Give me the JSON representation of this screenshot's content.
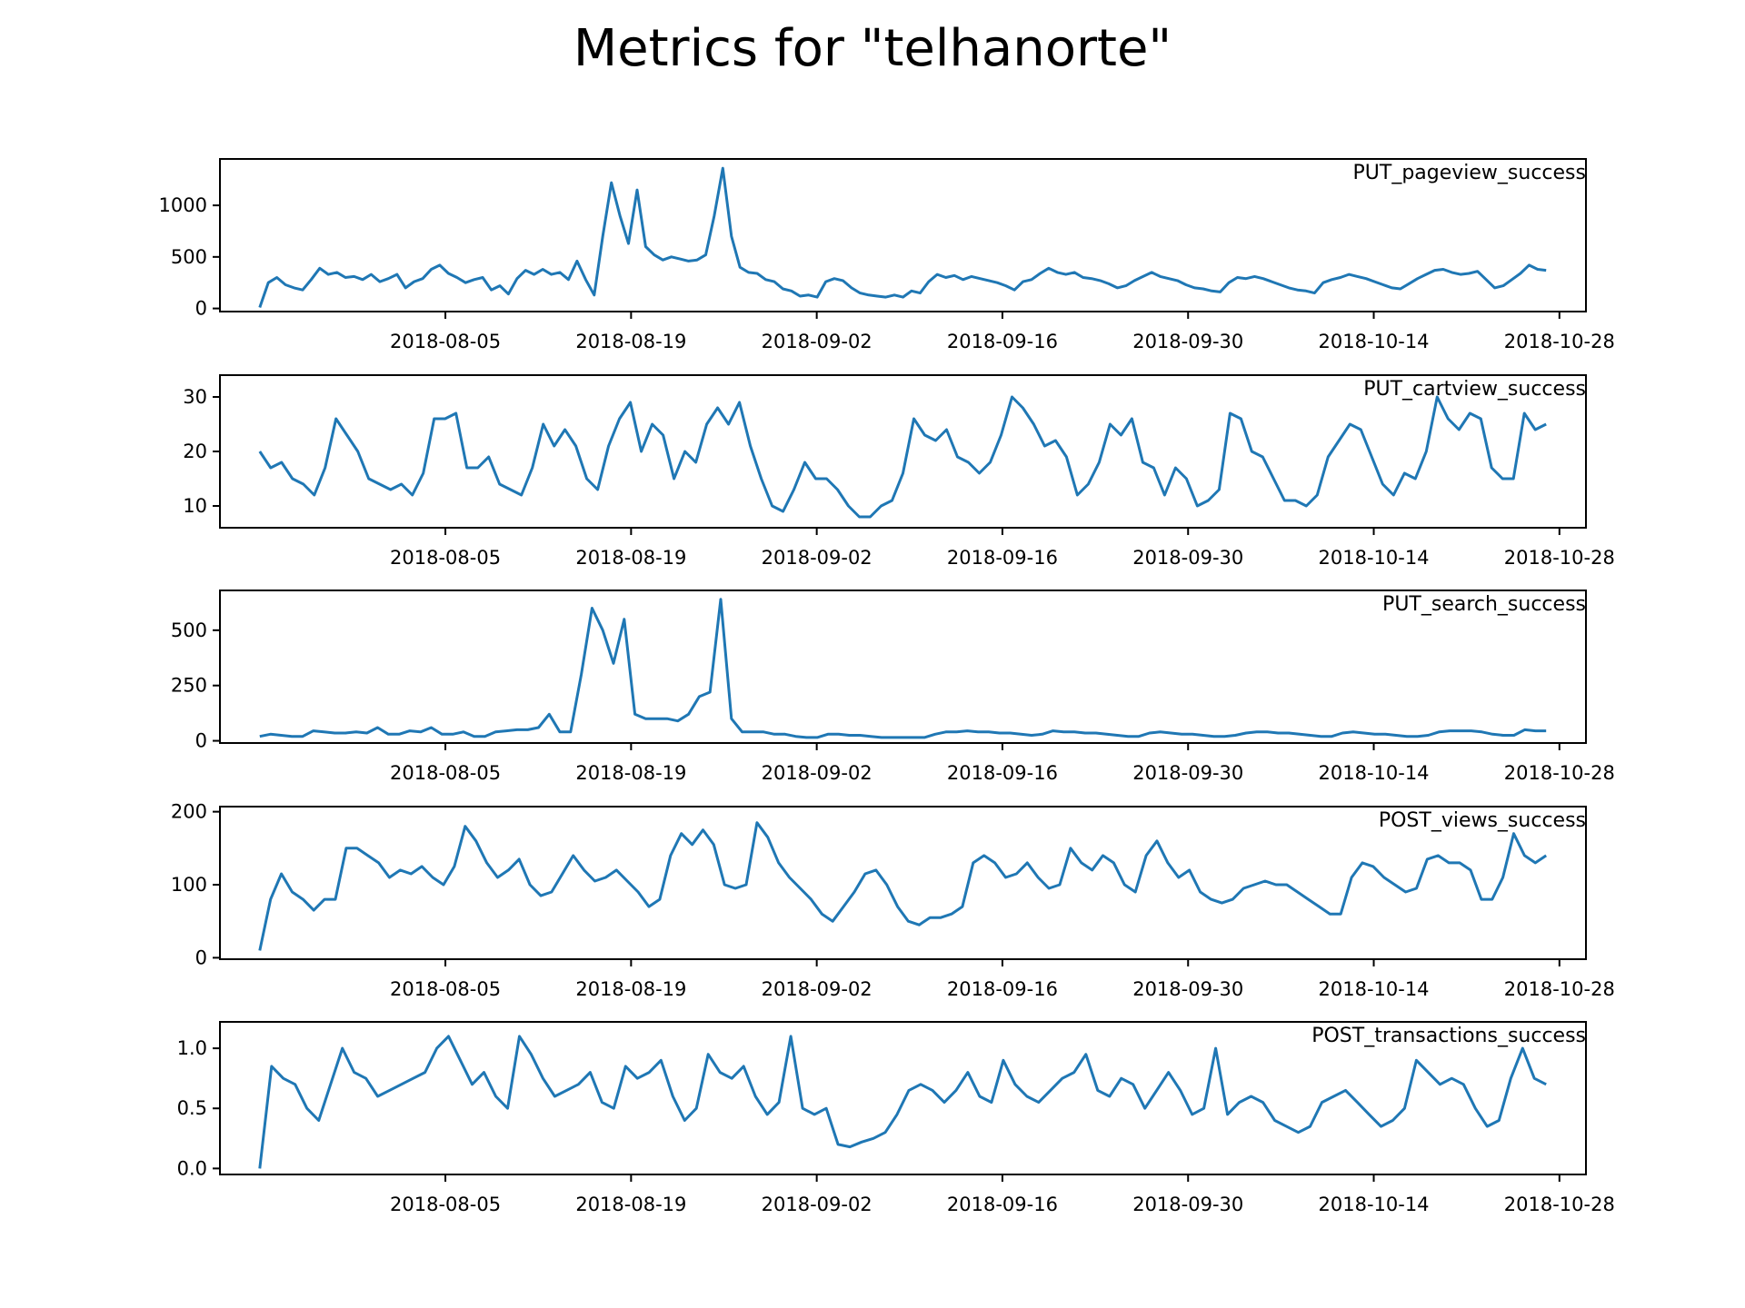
{
  "chart_data": {
    "type": "line",
    "title": "Metrics for \"telhanorte\"",
    "x_tick_labels": [
      "2018-08-05",
      "2018-08-19",
      "2018-09-02",
      "2018-09-16",
      "2018-09-30",
      "2018-10-14",
      "2018-10-28"
    ],
    "x_range": [
      "2018-07-22",
      "2018-10-27"
    ],
    "xlim": [
      "2018-07-19",
      "2018-10-30"
    ],
    "line_color": "#1f77b4",
    "grid": false,
    "panels": [
      {
        "name": "PUT_pageview_success",
        "ylim": [
          -30,
          1450
        ],
        "yticks": [
          0,
          500,
          1000
        ],
        "ytick_labels": [
          "0",
          "500",
          "1000"
        ],
        "values": [
          10,
          250,
          300,
          230,
          200,
          180,
          280,
          390,
          330,
          350,
          300,
          310,
          280,
          330,
          260,
          290,
          330,
          200,
          260,
          290,
          380,
          420,
          340,
          300,
          250,
          280,
          300,
          180,
          220,
          140,
          290,
          370,
          330,
          380,
          330,
          350,
          280,
          460,
          280,
          130,
          700,
          1220,
          900,
          630,
          1150,
          600,
          520,
          470,
          500,
          480,
          460,
          470,
          520,
          900,
          1360,
          700,
          400,
          350,
          340,
          280,
          260,
          190,
          170,
          120,
          130,
          110,
          260,
          290,
          270,
          200,
          150,
          130,
          120,
          110,
          130,
          110,
          170,
          150,
          260,
          330,
          300,
          320,
          280,
          310,
          290,
          270,
          250,
          220,
          180,
          260,
          280,
          340,
          390,
          350,
          330,
          350,
          300,
          290,
          270,
          240,
          200,
          220,
          270,
          310,
          350,
          310,
          290,
          270,
          230,
          200,
          190,
          170,
          160,
          250,
          300,
          290,
          310,
          290,
          260,
          230,
          200,
          180,
          170,
          150,
          250,
          280,
          300,
          330,
          310,
          290,
          260,
          230,
          200,
          190,
          240,
          290,
          330,
          370,
          380,
          350,
          330,
          340,
          360,
          280,
          200,
          220,
          280,
          340,
          420,
          380,
          370
        ]
      },
      {
        "name": "PUT_cartview_success",
        "ylim": [
          6,
          34
        ],
        "yticks": [
          10,
          20,
          30
        ],
        "ytick_labels": [
          "10",
          "20",
          "30"
        ],
        "values": [
          20,
          17,
          18,
          15,
          14,
          12,
          17,
          26,
          23,
          20,
          15,
          14,
          13,
          14,
          12,
          16,
          26,
          26,
          27,
          17,
          17,
          19,
          14,
          13,
          12,
          17,
          25,
          21,
          24,
          21,
          15,
          13,
          21,
          26,
          29,
          20,
          25,
          23,
          15,
          20,
          18,
          25,
          28,
          25,
          29,
          21,
          15,
          10,
          9,
          13,
          18,
          15,
          15,
          13,
          10,
          8,
          8,
          10,
          11,
          16,
          26,
          23,
          22,
          24,
          19,
          18,
          16,
          18,
          23,
          30,
          28,
          25,
          21,
          22,
          19,
          12,
          14,
          18,
          25,
          23,
          26,
          18,
          17,
          12,
          17,
          15,
          10,
          11,
          13,
          27,
          26,
          20,
          19,
          15,
          11,
          11,
          10,
          12,
          19,
          22,
          25,
          24,
          19,
          14,
          12,
          16,
          15,
          20,
          30,
          26,
          24,
          27,
          26,
          17,
          15,
          15,
          27,
          24,
          25
        ]
      },
      {
        "name": "PUT_search_success",
        "ylim": [
          -10,
          680
        ],
        "yticks": [
          0,
          250,
          500
        ],
        "ytick_labels": [
          "0",
          "250",
          "500"
        ],
        "values": [
          20,
          30,
          25,
          20,
          20,
          45,
          40,
          35,
          35,
          40,
          35,
          60,
          30,
          30,
          45,
          40,
          60,
          30,
          30,
          40,
          20,
          20,
          40,
          45,
          50,
          50,
          60,
          120,
          40,
          40,
          300,
          600,
          500,
          350,
          550,
          120,
          100,
          100,
          100,
          90,
          120,
          200,
          220,
          640,
          100,
          40,
          40,
          40,
          30,
          30,
          20,
          15,
          15,
          30,
          30,
          25,
          25,
          20,
          15,
          15,
          15,
          15,
          15,
          30,
          40,
          40,
          45,
          40,
          40,
          35,
          35,
          30,
          25,
          30,
          45,
          40,
          40,
          35,
          35,
          30,
          25,
          20,
          20,
          35,
          40,
          35,
          30,
          30,
          25,
          20,
          20,
          25,
          35,
          40,
          40,
          35,
          35,
          30,
          25,
          20,
          20,
          35,
          40,
          35,
          30,
          30,
          25,
          20,
          20,
          25,
          40,
          45,
          45,
          45,
          40,
          30,
          25,
          25,
          50,
          45,
          45
        ]
      },
      {
        "name": "POST_views_success",
        "ylim": [
          -2,
          207
        ],
        "yticks": [
          0,
          100,
          200
        ],
        "ytick_labels": [
          "0",
          "100",
          "200"
        ],
        "values": [
          10,
          80,
          115,
          90,
          80,
          65,
          80,
          80,
          150,
          150,
          140,
          130,
          110,
          120,
          115,
          125,
          110,
          100,
          125,
          180,
          160,
          130,
          110,
          120,
          135,
          100,
          85,
          90,
          115,
          140,
          120,
          105,
          110,
          120,
          105,
          90,
          70,
          80,
          140,
          170,
          155,
          175,
          155,
          100,
          95,
          100,
          185,
          165,
          130,
          110,
          95,
          80,
          60,
          50,
          70,
          90,
          115,
          120,
          100,
          70,
          50,
          45,
          55,
          55,
          60,
          70,
          130,
          140,
          130,
          110,
          115,
          130,
          110,
          95,
          100,
          150,
          130,
          120,
          140,
          130,
          100,
          90,
          140,
          160,
          130,
          110,
          120,
          90,
          80,
          75,
          80,
          95,
          100,
          105,
          100,
          100,
          90,
          80,
          70,
          60,
          60,
          110,
          130,
          125,
          110,
          100,
          90,
          95,
          135,
          140,
          130,
          130,
          120,
          80,
          80,
          110,
          170,
          140,
          130,
          140
        ]
      },
      {
        "name": "POST_transactions_success",
        "ylim": [
          -0.05,
          1.22
        ],
        "yticks": [
          0.0,
          0.5,
          1.0
        ],
        "ytick_labels": [
          "0.0",
          "0.5",
          "1.0"
        ],
        "values": [
          0.0,
          0.85,
          0.75,
          0.7,
          0.5,
          0.4,
          0.7,
          1.0,
          0.8,
          0.75,
          0.6,
          0.65,
          0.7,
          0.75,
          0.8,
          1.0,
          1.1,
          0.9,
          0.7,
          0.8,
          0.6,
          0.5,
          1.1,
          0.95,
          0.75,
          0.6,
          0.65,
          0.7,
          0.8,
          0.55,
          0.5,
          0.85,
          0.75,
          0.8,
          0.9,
          0.6,
          0.4,
          0.5,
          0.95,
          0.8,
          0.75,
          0.85,
          0.6,
          0.45,
          0.55,
          1.1,
          0.5,
          0.45,
          0.5,
          0.2,
          0.18,
          0.22,
          0.25,
          0.3,
          0.45,
          0.65,
          0.7,
          0.65,
          0.55,
          0.65,
          0.8,
          0.6,
          0.55,
          0.9,
          0.7,
          0.6,
          0.55,
          0.65,
          0.75,
          0.8,
          0.95,
          0.65,
          0.6,
          0.75,
          0.7,
          0.5,
          0.65,
          0.8,
          0.65,
          0.45,
          0.5,
          1.0,
          0.45,
          0.55,
          0.6,
          0.55,
          0.4,
          0.35,
          0.3,
          0.35,
          0.55,
          0.6,
          0.65,
          0.55,
          0.45,
          0.35,
          0.4,
          0.5,
          0.9,
          0.8,
          0.7,
          0.75,
          0.7,
          0.5,
          0.35,
          0.4,
          0.75,
          1.0,
          0.75,
          0.7
        ]
      }
    ]
  }
}
